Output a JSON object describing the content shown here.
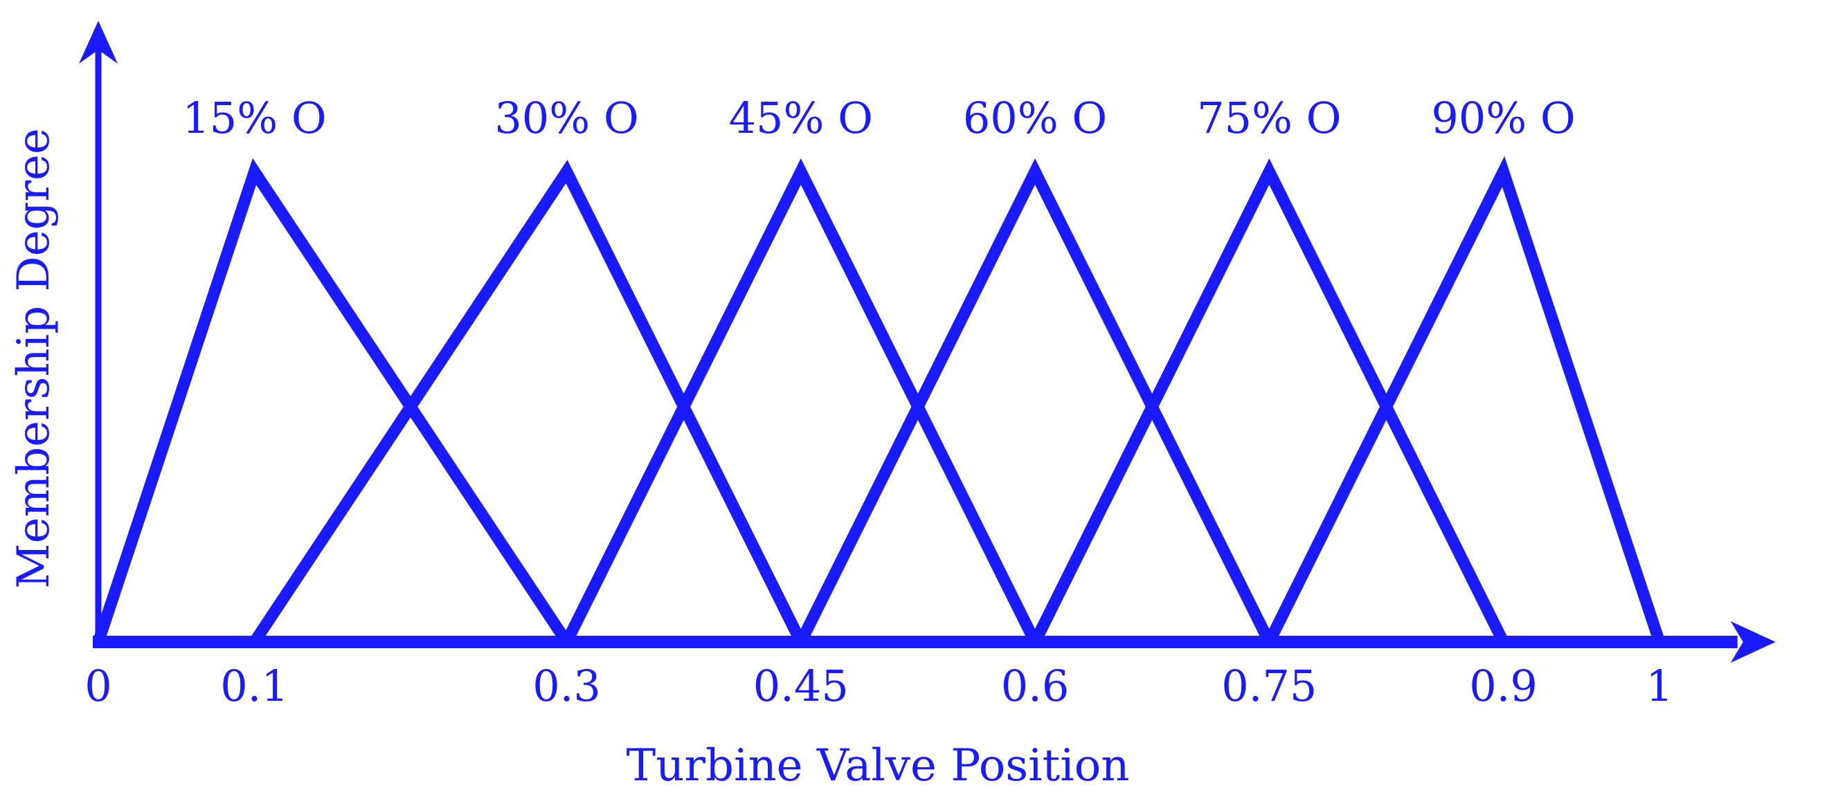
{
  "chart_data": {
    "type": "line",
    "title": "",
    "xlabel": "Turbine Valve Position",
    "ylabel": "Membership Degree",
    "xlim": [
      0,
      1.05
    ],
    "ylim": [
      0,
      1
    ],
    "grid": false,
    "color": "#1a1aff",
    "x_ticks": [
      {
        "value": 0,
        "label": "0"
      },
      {
        "value": 0.1,
        "label": "0.1"
      },
      {
        "value": 0.3,
        "label": "0.3"
      },
      {
        "value": 0.45,
        "label": "0.45"
      },
      {
        "value": 0.6,
        "label": "0.6"
      },
      {
        "value": 0.75,
        "label": "0.75"
      },
      {
        "value": 0.9,
        "label": "0.9"
      },
      {
        "value": 1,
        "label": "1"
      }
    ],
    "series": [
      {
        "name": "15% O",
        "x": [
          0,
          0.1,
          0.3
        ],
        "y": [
          0,
          1,
          0
        ]
      },
      {
        "name": "30% O",
        "x": [
          0.1,
          0.3,
          0.45
        ],
        "y": [
          0,
          1,
          0
        ]
      },
      {
        "name": "45% O",
        "x": [
          0.3,
          0.45,
          0.6
        ],
        "y": [
          0,
          1,
          0
        ]
      },
      {
        "name": "60% O",
        "x": [
          0.45,
          0.6,
          0.75
        ],
        "y": [
          0,
          1,
          0
        ]
      },
      {
        "name": "75% O",
        "x": [
          0.6,
          0.75,
          0.9
        ],
        "y": [
          0,
          1,
          0
        ]
      },
      {
        "name": "90% O",
        "x": [
          0.75,
          0.9,
          1
        ],
        "y": [
          0,
          1,
          0
        ]
      }
    ]
  }
}
